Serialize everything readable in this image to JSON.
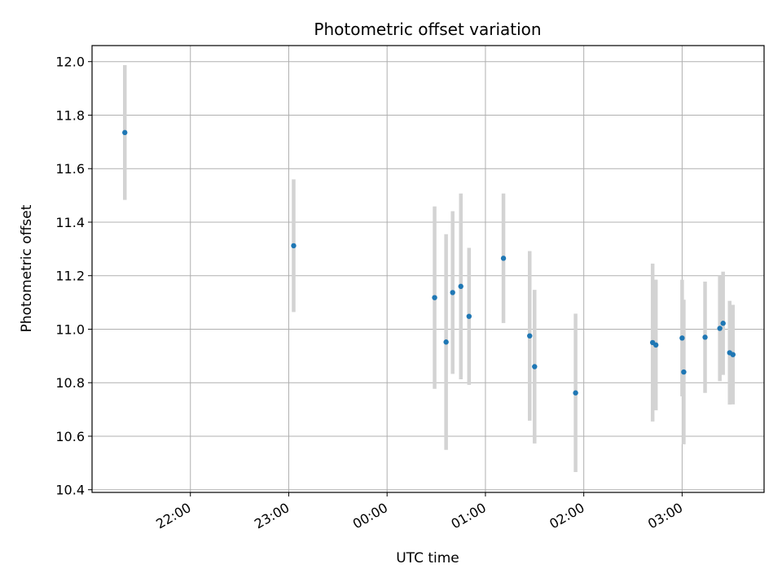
{
  "chart_data": {
    "type": "scatter",
    "title": "Photometric offset variation",
    "xlabel": "UTC time",
    "ylabel": "Photometric offset",
    "x_unit": "UTC hh:mm (series spans 21:00 to 04:00 next day)",
    "xlim": [
      "21:00",
      "03:50"
    ],
    "ylim": [
      10.39,
      12.06
    ],
    "grid": true,
    "x_ticks": [
      "22:00",
      "23:00",
      "00:00",
      "01:00",
      "02:00",
      "03:00"
    ],
    "y_ticks": [
      "10.4",
      "10.6",
      "10.8",
      "11.0",
      "11.2",
      "11.4",
      "11.6",
      "11.8",
      "12.0"
    ],
    "marker_color": "#1f77b4",
    "errorbar_color": "#d3d3d3",
    "points": [
      {
        "time": "21:20",
        "y": 11.735,
        "err": 0.252
      },
      {
        "time": "23:03",
        "y": 11.312,
        "err": 0.248
      },
      {
        "time": "00:36",
        "y": 10.952,
        "err": 0.403
      },
      {
        "time": "00:29",
        "y": 11.118,
        "err": 0.341
      },
      {
        "time": "00:40",
        "y": 11.137,
        "err": 0.304
      },
      {
        "time": "00:45",
        "y": 11.16,
        "err": 0.347
      },
      {
        "time": "00:50",
        "y": 11.048,
        "err": 0.256
      },
      {
        "time": "01:11",
        "y": 11.265,
        "err": 0.242
      },
      {
        "time": "01:27",
        "y": 10.975,
        "err": 0.317
      },
      {
        "time": "01:30",
        "y": 10.86,
        "err": 0.287
      },
      {
        "time": "01:55",
        "y": 10.762,
        "err": 0.296
      },
      {
        "time": "02:42",
        "y": 10.95,
        "err": 0.295
      },
      {
        "time": "02:44",
        "y": 10.941,
        "err": 0.244
      },
      {
        "time": "03:00",
        "y": 10.967,
        "err": 0.218
      },
      {
        "time": "03:01",
        "y": 10.84,
        "err": 0.27
      },
      {
        "time": "03:14",
        "y": 10.97,
        "err": 0.208
      },
      {
        "time": "03:23",
        "y": 11.003,
        "err": 0.197
      },
      {
        "time": "03:25",
        "y": 11.022,
        "err": 0.193
      },
      {
        "time": "03:29",
        "y": 10.912,
        "err": 0.194
      },
      {
        "time": "03:31",
        "y": 10.905,
        "err": 0.186
      }
    ]
  }
}
